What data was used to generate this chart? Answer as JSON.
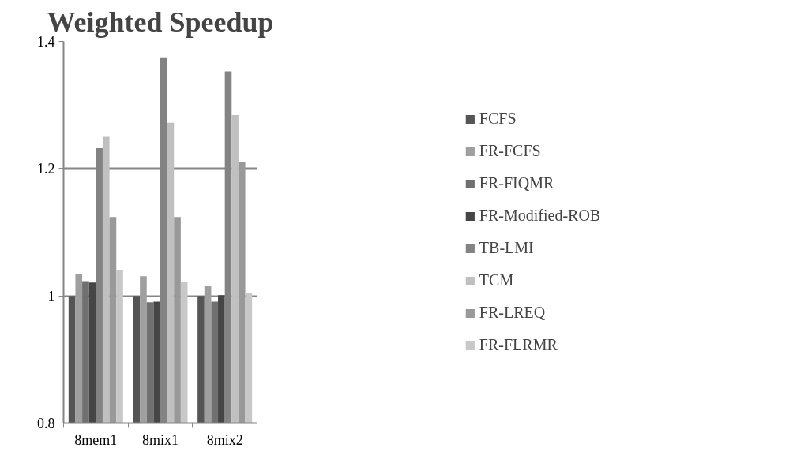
{
  "chart_data": {
    "type": "bar",
    "title": "Weighted Speedup",
    "categories": [
      "8mem1",
      "8mix1",
      "8mix2"
    ],
    "series": [
      {
        "name": "FCFS",
        "color": "#555555",
        "values": [
          1.0,
          1.0,
          1.0
        ]
      },
      {
        "name": "FR-FCFS",
        "color": "#9f9f9f",
        "values": [
          1.035,
          1.031,
          1.015
        ]
      },
      {
        "name": "FR-FIQMR",
        "color": "#707070",
        "values": [
          1.023,
          0.99,
          0.991
        ]
      },
      {
        "name": "FR-Modified-ROB",
        "color": "#454545",
        "values": [
          1.021,
          0.991,
          1.001
        ]
      },
      {
        "name": "TB-LMI",
        "color": "#838383",
        "values": [
          1.232,
          1.375,
          1.353
        ]
      },
      {
        "name": "TCM",
        "color": "#c0c0c0",
        "values": [
          1.25,
          1.272,
          1.284
        ]
      },
      {
        "name": "FR-LREQ",
        "color": "#999999",
        "values": [
          1.124,
          1.124,
          1.21
        ]
      },
      {
        "name": "FR-FLRMR",
        "color": "#c8c8c8",
        "values": [
          1.04,
          1.022,
          1.005
        ]
      }
    ],
    "ylim": [
      0.8,
      1.4
    ],
    "yticks": [
      {
        "value": 0.8,
        "label": "0.8"
      },
      {
        "value": 1.0,
        "label": "1"
      },
      {
        "value": 1.2,
        "label": "1.2"
      },
      {
        "value": 1.4,
        "label": "1.4"
      }
    ],
    "grid": "y",
    "legend": "right"
  }
}
